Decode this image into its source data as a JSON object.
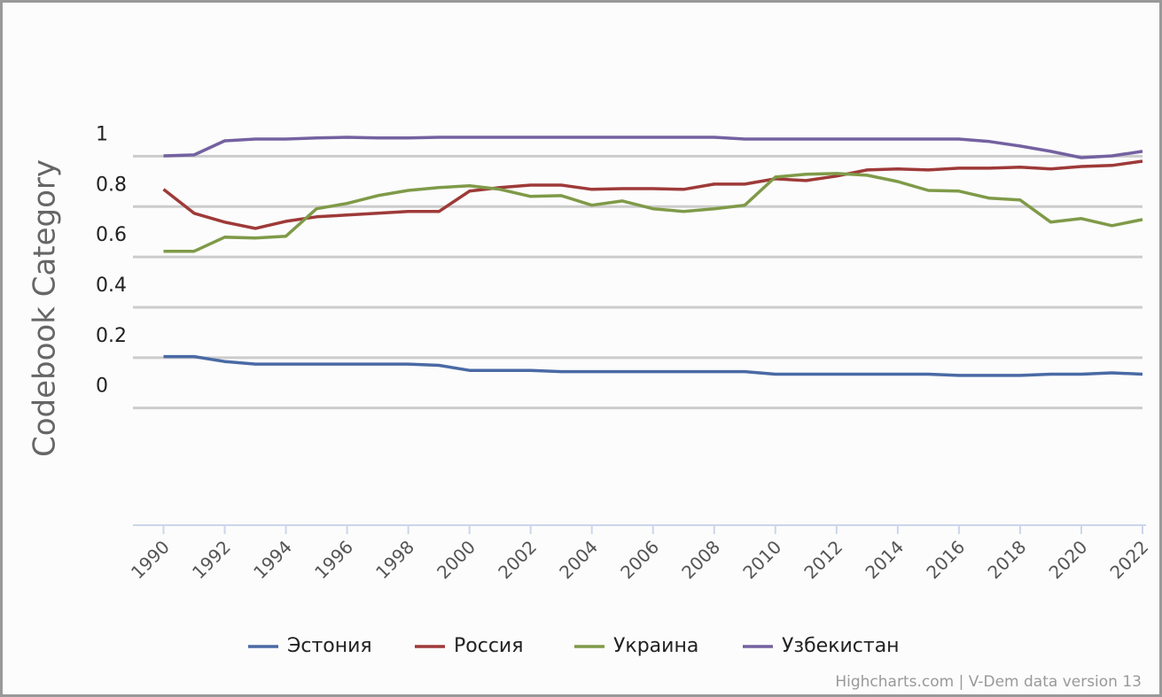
{
  "chart_data": {
    "type": "line",
    "y_axis_title": "Codebook Category",
    "credits": "Highcharts.com | V-Dem data version 13",
    "x": [
      1990,
      1991,
      1992,
      1993,
      1994,
      1995,
      1996,
      1997,
      1998,
      1999,
      2000,
      2001,
      2002,
      2003,
      2004,
      2005,
      2006,
      2007,
      2008,
      2009,
      2010,
      2011,
      2012,
      2013,
      2014,
      2015,
      2016,
      2017,
      2018,
      2019,
      2020,
      2021,
      2022
    ],
    "xlim": [
      1989,
      2022
    ],
    "xticks": [
      1990,
      1992,
      1994,
      1996,
      1998,
      2000,
      2002,
      2004,
      2006,
      2008,
      2010,
      2012,
      2014,
      2016,
      2018,
      2020,
      2022
    ],
    "ylim": [
      -0.55,
      1.1
    ],
    "yticks": [
      0,
      0.2,
      0.4,
      0.6,
      0.8,
      1
    ],
    "grid": true,
    "legend": "bottom",
    "series": [
      {
        "name": "Эстония",
        "color": "#4a6aa5",
        "values": [
          0.12,
          0.12,
          0.1,
          0.09,
          0.09,
          0.09,
          0.09,
          0.09,
          0.09,
          0.085,
          0.065,
          0.065,
          0.065,
          0.06,
          0.06,
          0.06,
          0.06,
          0.06,
          0.06,
          0.06,
          0.05,
          0.05,
          0.05,
          0.05,
          0.05,
          0.05,
          0.045,
          0.045,
          0.045,
          0.05,
          0.05,
          0.055,
          0.05
        ]
      },
      {
        "name": "Россия",
        "color": "#9e3a38",
        "values": [
          0.784,
          0.689,
          0.654,
          0.629,
          0.657,
          0.675,
          0.682,
          0.689,
          0.696,
          0.696,
          0.777,
          0.791,
          0.801,
          0.801,
          0.784,
          0.787,
          0.787,
          0.784,
          0.805,
          0.805,
          0.826,
          0.819,
          0.837,
          0.861,
          0.865,
          0.861,
          0.868,
          0.868,
          0.872,
          0.865,
          0.875,
          0.879,
          0.896
        ]
      },
      {
        "name": "Украина",
        "color": "#7f9a48",
        "values": [
          0.538,
          0.538,
          0.594,
          0.591,
          0.598,
          0.707,
          0.728,
          0.759,
          0.78,
          0.791,
          0.798,
          0.784,
          0.756,
          0.759,
          0.721,
          0.738,
          0.707,
          0.696,
          0.707,
          0.721,
          0.833,
          0.844,
          0.847,
          0.84,
          0.815,
          0.78,
          0.777,
          0.749,
          0.742,
          0.654,
          0.668,
          0.64,
          0.664
        ]
      },
      {
        "name": "Узбекистан",
        "color": "#7461a0",
        "values": [
          0.917,
          0.921,
          0.977,
          0.984,
          0.984,
          0.988,
          0.991,
          0.988,
          0.988,
          0.991,
          0.991,
          0.991,
          0.991,
          0.991,
          0.991,
          0.991,
          0.991,
          0.991,
          0.991,
          0.984,
          0.984,
          0.984,
          0.984,
          0.984,
          0.984,
          0.984,
          0.984,
          0.974,
          0.956,
          0.935,
          0.91,
          0.917,
          0.935
        ]
      }
    ]
  }
}
